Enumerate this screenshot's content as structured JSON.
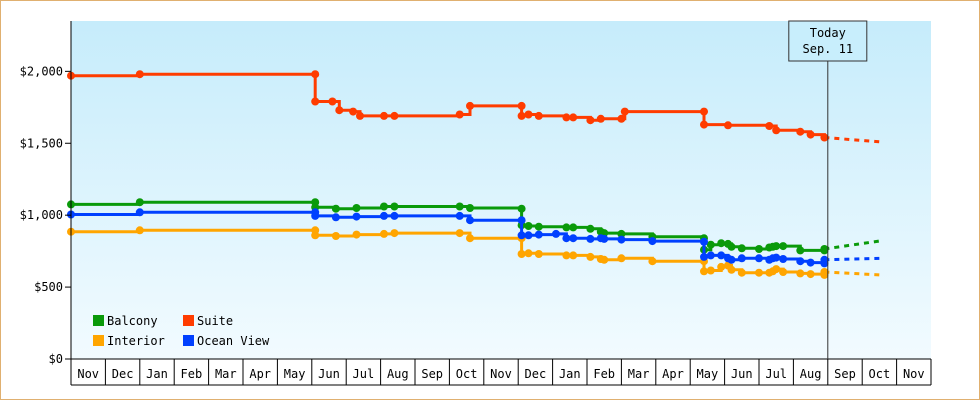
{
  "chart_data": {
    "type": "line",
    "title": "",
    "xlabel": "",
    "ylabel": "",
    "y_ticks": [
      "$0",
      "$500",
      "$1,000",
      "$1,500",
      "$2,000"
    ],
    "y_tick_values": [
      0,
      500,
      1000,
      1500,
      2000
    ],
    "ylim": [
      0,
      2350
    ],
    "x_months": [
      "Nov",
      "Dec",
      "Jan",
      "Feb",
      "Mar",
      "Apr",
      "May",
      "Jun",
      "Jul",
      "Aug",
      "Sep",
      "Oct",
      "Nov",
      "Dec",
      "Jan",
      "Feb",
      "Mar",
      "Apr",
      "May",
      "Jun",
      "Jul",
      "Aug",
      "Sep",
      "Oct",
      "Nov"
    ],
    "x_start_month": "Nov",
    "today_label": [
      "Today",
      "Sep. 11"
    ],
    "today_month_index": 22.0,
    "legend": [
      "Balcony",
      "Suite",
      "Interior",
      "Ocean View"
    ],
    "legend_position": "bottom-left",
    "grid": false,
    "series": [
      {
        "name": "Balcony",
        "color": "#0a9a0a",
        "points": [
          [
            0,
            1075
          ],
          [
            2,
            1090
          ],
          [
            7.1,
            1090
          ],
          [
            7.1,
            1055
          ],
          [
            7.7,
            1045
          ],
          [
            8.3,
            1050
          ],
          [
            9.1,
            1060
          ],
          [
            9.4,
            1060
          ],
          [
            11.3,
            1060
          ],
          [
            11.6,
            1050
          ],
          [
            13.1,
            1045
          ],
          [
            13.1,
            930
          ],
          [
            13.3,
            925
          ],
          [
            13.6,
            920
          ],
          [
            14.4,
            915
          ],
          [
            14.6,
            915
          ],
          [
            15.1,
            905
          ],
          [
            15.4,
            885
          ],
          [
            15.5,
            875
          ],
          [
            16,
            870
          ],
          [
            16.9,
            850
          ],
          [
            18.4,
            840
          ],
          [
            18.4,
            760
          ],
          [
            18.6,
            795
          ],
          [
            18.9,
            805
          ],
          [
            19.1,
            800
          ],
          [
            19.2,
            780
          ],
          [
            19.5,
            770
          ],
          [
            20,
            765
          ],
          [
            20.3,
            775
          ],
          [
            20.4,
            780
          ],
          [
            20.5,
            785
          ],
          [
            20.7,
            785
          ],
          [
            21.2,
            755
          ],
          [
            21.9,
            755
          ],
          [
            21.9,
            765
          ]
        ],
        "projection": [
          [
            21.9,
            765
          ],
          [
            23.5,
            820
          ]
        ]
      },
      {
        "name": "Suite",
        "color": "#ff3c00",
        "points": [
          [
            0,
            1970
          ],
          [
            2,
            1980
          ],
          [
            7.1,
            1980
          ],
          [
            7.1,
            1790
          ],
          [
            7.6,
            1790
          ],
          [
            7.8,
            1730
          ],
          [
            8.2,
            1720
          ],
          [
            8.4,
            1690
          ],
          [
            9.1,
            1690
          ],
          [
            9.4,
            1690
          ],
          [
            11.3,
            1700
          ],
          [
            11.6,
            1760
          ],
          [
            13.1,
            1760
          ],
          [
            13.1,
            1690
          ],
          [
            13.3,
            1700
          ],
          [
            13.6,
            1690
          ],
          [
            14.4,
            1680
          ],
          [
            14.6,
            1680
          ],
          [
            15.1,
            1660
          ],
          [
            15.4,
            1670
          ],
          [
            16,
            1670
          ],
          [
            16.1,
            1720
          ],
          [
            18.4,
            1720
          ],
          [
            18.4,
            1630
          ],
          [
            19.1,
            1625
          ],
          [
            20.3,
            1620
          ],
          [
            20.5,
            1590
          ],
          [
            21.2,
            1580
          ],
          [
            21.5,
            1560
          ],
          [
            21.9,
            1540
          ]
        ],
        "projection": [
          [
            21.9,
            1540
          ],
          [
            23.5,
            1510
          ]
        ]
      },
      {
        "name": "Interior",
        "color": "#ffa500",
        "points": [
          [
            0,
            885
          ],
          [
            2,
            895
          ],
          [
            7.1,
            895
          ],
          [
            7.1,
            860
          ],
          [
            7.7,
            855
          ],
          [
            8.3,
            865
          ],
          [
            9.1,
            870
          ],
          [
            9.4,
            875
          ],
          [
            11.3,
            875
          ],
          [
            11.6,
            840
          ],
          [
            13.1,
            840
          ],
          [
            13.1,
            730
          ],
          [
            13.3,
            735
          ],
          [
            13.6,
            730
          ],
          [
            14.4,
            720
          ],
          [
            14.6,
            720
          ],
          [
            15.1,
            710
          ],
          [
            15.4,
            695
          ],
          [
            15.5,
            690
          ],
          [
            16,
            700
          ],
          [
            16.9,
            680
          ],
          [
            18.4,
            680
          ],
          [
            18.4,
            610
          ],
          [
            18.6,
            615
          ],
          [
            18.9,
            640
          ],
          [
            19.1,
            650
          ],
          [
            19.2,
            620
          ],
          [
            19.5,
            600
          ],
          [
            20,
            600
          ],
          [
            20.3,
            600
          ],
          [
            20.4,
            610
          ],
          [
            20.5,
            625
          ],
          [
            20.7,
            605
          ],
          [
            21.2,
            595
          ],
          [
            21.5,
            590
          ],
          [
            21.9,
            585
          ],
          [
            21.9,
            605
          ]
        ],
        "projection": [
          [
            21.9,
            605
          ],
          [
            23.5,
            585
          ]
        ]
      },
      {
        "name": "Ocean View",
        "color": "#0040ff",
        "points": [
          [
            0,
            1005
          ],
          [
            2,
            1020
          ],
          [
            7.1,
            1020
          ],
          [
            7.1,
            995
          ],
          [
            7.7,
            985
          ],
          [
            8.3,
            990
          ],
          [
            9.1,
            995
          ],
          [
            9.4,
            995
          ],
          [
            11.3,
            995
          ],
          [
            11.6,
            965
          ],
          [
            13.1,
            965
          ],
          [
            13.1,
            860
          ],
          [
            13.3,
            860
          ],
          [
            13.6,
            865
          ],
          [
            14.1,
            870
          ],
          [
            14.4,
            840
          ],
          [
            14.6,
            840
          ],
          [
            15.1,
            835
          ],
          [
            15.4,
            840
          ],
          [
            15.5,
            835
          ],
          [
            16,
            830
          ],
          [
            16.9,
            820
          ],
          [
            18.4,
            815
          ],
          [
            18.4,
            710
          ],
          [
            18.6,
            720
          ],
          [
            18.9,
            720
          ],
          [
            19.1,
            700
          ],
          [
            19.2,
            690
          ],
          [
            19.5,
            700
          ],
          [
            20,
            700
          ],
          [
            20.3,
            690
          ],
          [
            20.4,
            700
          ],
          [
            20.5,
            705
          ],
          [
            20.7,
            695
          ],
          [
            21.2,
            680
          ],
          [
            21.5,
            670
          ],
          [
            21.9,
            665
          ],
          [
            21.9,
            690
          ]
        ],
        "projection": [
          [
            21.9,
            690
          ],
          [
            23.5,
            700
          ]
        ]
      }
    ]
  }
}
